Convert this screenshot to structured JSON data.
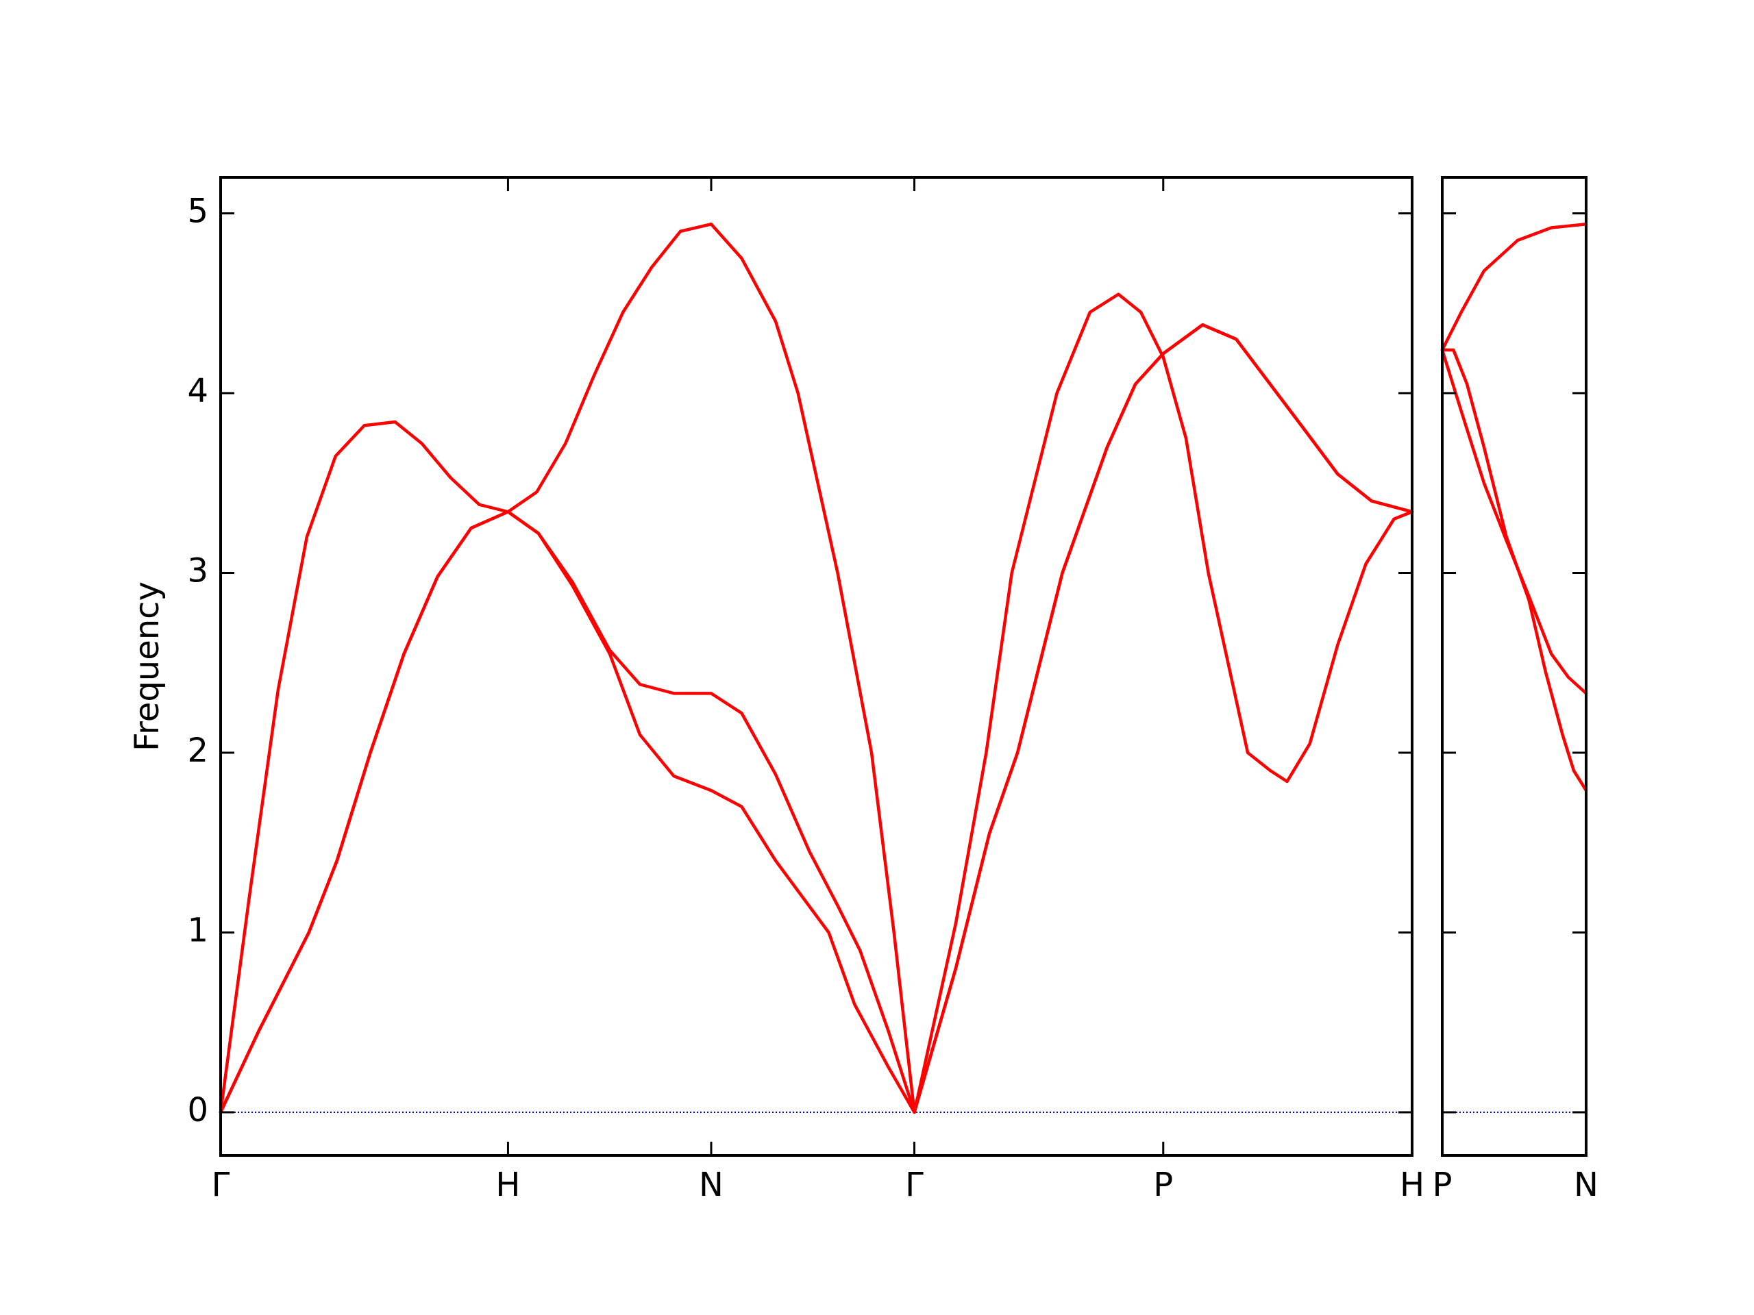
{
  "chart_data": [
    {
      "type": "line",
      "ylabel": "Frequency",
      "xlim": [
        0,
        4.146
      ],
      "ylim": [
        -0.24,
        5.2
      ],
      "xticks": [
        {
          "value": 0,
          "label": "Γ"
        },
        {
          "value": 1.0,
          "label": "H"
        },
        {
          "value": 1.707,
          "label": "N"
        },
        {
          "value": 2.414,
          "label": "Γ"
        },
        {
          "value": 3.28,
          "label": "P"
        },
        {
          "value": 4.146,
          "label": "H"
        }
      ],
      "yticks": [
        0,
        1,
        2,
        3,
        4,
        5
      ],
      "ytick_labels": true,
      "hline": {
        "value": 0,
        "color": "#0000cc"
      },
      "series": [
        {
          "color": "#ff0000",
          "x": [
            0,
            0.1,
            0.2,
            0.3,
            0.4,
            0.5,
            0.607,
            0.7,
            0.8,
            0.9,
            1.0,
            1.1,
            1.2,
            1.3,
            1.4,
            1.5,
            1.6,
            1.707,
            1.813,
            1.931,
            2.009,
            2.147,
            2.265,
            2.343,
            2.414,
            2.558,
            2.664,
            2.753,
            2.91,
            3.025,
            3.124,
            3.202,
            3.28,
            3.359,
            3.437,
            3.574,
            3.653,
            3.711,
            3.79,
            3.887,
            3.985,
            4.083,
            4.146
          ],
          "values": [
            0,
            1.2,
            2.35,
            3.2,
            3.65,
            3.82,
            3.84,
            3.72,
            3.53,
            3.38,
            3.34,
            3.45,
            3.72,
            4.1,
            4.45,
            4.7,
            4.9,
            4.94,
            4.75,
            4.4,
            4.0,
            3.0,
            2.0,
            1.0,
            0,
            1.05,
            2.0,
            3.0,
            4.0,
            4.45,
            4.55,
            4.45,
            4.2,
            3.75,
            3.0,
            2.0,
            1.9,
            1.84,
            2.05,
            2.6,
            3.05,
            3.3,
            3.34
          ]
        },
        {
          "color": "#ff0000",
          "x": [
            0,
            0.132,
            0.307,
            0.405,
            0.521,
            0.638,
            0.755,
            0.872,
            1.0,
            1.106,
            1.224,
            1.354,
            1.459,
            1.577,
            1.707,
            1.813,
            1.931,
            2.049,
            2.147,
            2.225,
            2.324,
            2.414,
            2.558,
            2.675,
            2.773,
            2.929,
            3.085,
            3.183,
            3.28,
            3.417,
            3.534,
            3.652,
            3.77,
            3.887,
            4.005,
            4.146
          ],
          "values": [
            0,
            0.45,
            1.0,
            1.4,
            2.0,
            2.55,
            2.98,
            3.25,
            3.34,
            3.22,
            2.95,
            2.57,
            2.38,
            2.33,
            2.33,
            2.22,
            1.88,
            1.45,
            1.15,
            0.9,
            0.45,
            0,
            0.8,
            1.55,
            2.0,
            3.0,
            3.7,
            4.05,
            4.22,
            4.38,
            4.3,
            4.05,
            3.8,
            3.55,
            3.4,
            3.34
          ]
        },
        {
          "color": "#ff0000",
          "x": [
            0,
            0.132,
            0.307,
            0.405,
            0.521,
            0.638,
            0.755,
            0.872,
            1.0,
            1.106,
            1.224,
            1.354,
            1.459,
            1.577,
            1.707,
            1.813,
            1.931,
            2.116,
            2.206,
            2.324,
            2.414,
            2.558,
            2.675,
            2.773,
            2.929,
            3.085,
            3.183,
            3.28,
            3.417,
            3.534,
            3.652,
            3.77,
            3.887,
            4.005,
            4.146
          ],
          "values": [
            0,
            0.45,
            1.0,
            1.4,
            2.0,
            2.55,
            2.98,
            3.25,
            3.34,
            3.22,
            2.93,
            2.55,
            2.1,
            1.87,
            1.79,
            1.7,
            1.4,
            1.0,
            0.6,
            0.25,
            0,
            0.8,
            1.55,
            2.0,
            3.0,
            3.7,
            4.05,
            4.22,
            4.38,
            4.3,
            4.05,
            3.8,
            3.55,
            3.4,
            3.34
          ]
        }
      ]
    },
    {
      "type": "line",
      "xlim": [
        0,
        0.5
      ],
      "ylim": [
        -0.24,
        5.2
      ],
      "xticks": [
        {
          "value": 0,
          "label": "P"
        },
        {
          "value": 0.5,
          "label": "N"
        }
      ],
      "yticks": [
        0,
        1,
        2,
        3,
        4,
        5
      ],
      "ytick_labels": false,
      "hline": {
        "value": 0,
        "color": "#0000cc"
      },
      "series": [
        {
          "color": "#ff0000",
          "x": [
            0,
            0.066,
            0.145,
            0.262,
            0.379,
            0.5
          ],
          "values": [
            4.24,
            4.45,
            4.68,
            4.85,
            4.92,
            4.94
          ]
        },
        {
          "color": "#ff0000",
          "x": [
            0,
            0.066,
            0.145,
            0.223,
            0.301,
            0.379,
            0.438,
            0.5
          ],
          "values": [
            4.24,
            3.9,
            3.5,
            3.18,
            2.87,
            2.55,
            2.42,
            2.33
          ]
        },
        {
          "color": "#ff0000",
          "x": [
            0,
            0.039,
            0.086,
            0.145,
            0.223,
            0.301,
            0.359,
            0.418,
            0.457,
            0.5
          ],
          "values": [
            4.24,
            4.24,
            4.05,
            3.7,
            3.2,
            2.85,
            2.45,
            2.1,
            1.9,
            1.79
          ]
        }
      ]
    }
  ]
}
